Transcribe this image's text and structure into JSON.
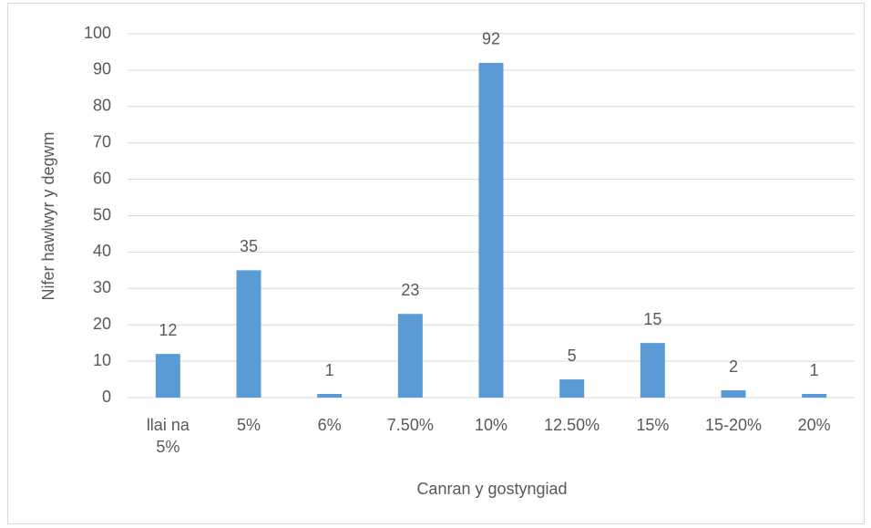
{
  "chart_data": {
    "type": "bar",
    "categories": [
      "llai na 5%",
      "5%",
      "6%",
      "7.50%",
      "10%",
      "12.50%",
      "15%",
      "15-20%",
      "20%"
    ],
    "values": [
      12,
      35,
      1,
      23,
      92,
      5,
      15,
      2,
      1
    ],
    "color": "#5b9bd5",
    "xlabel": "Canran y gostyngiad",
    "ylabel": "Nifer hawlwyr y degwm",
    "ylim": [
      0,
      100
    ],
    "yticks": [
      0,
      10,
      20,
      30,
      40,
      50,
      60,
      70,
      80,
      90,
      100
    ],
    "grid": true,
    "data_labels": true
  }
}
